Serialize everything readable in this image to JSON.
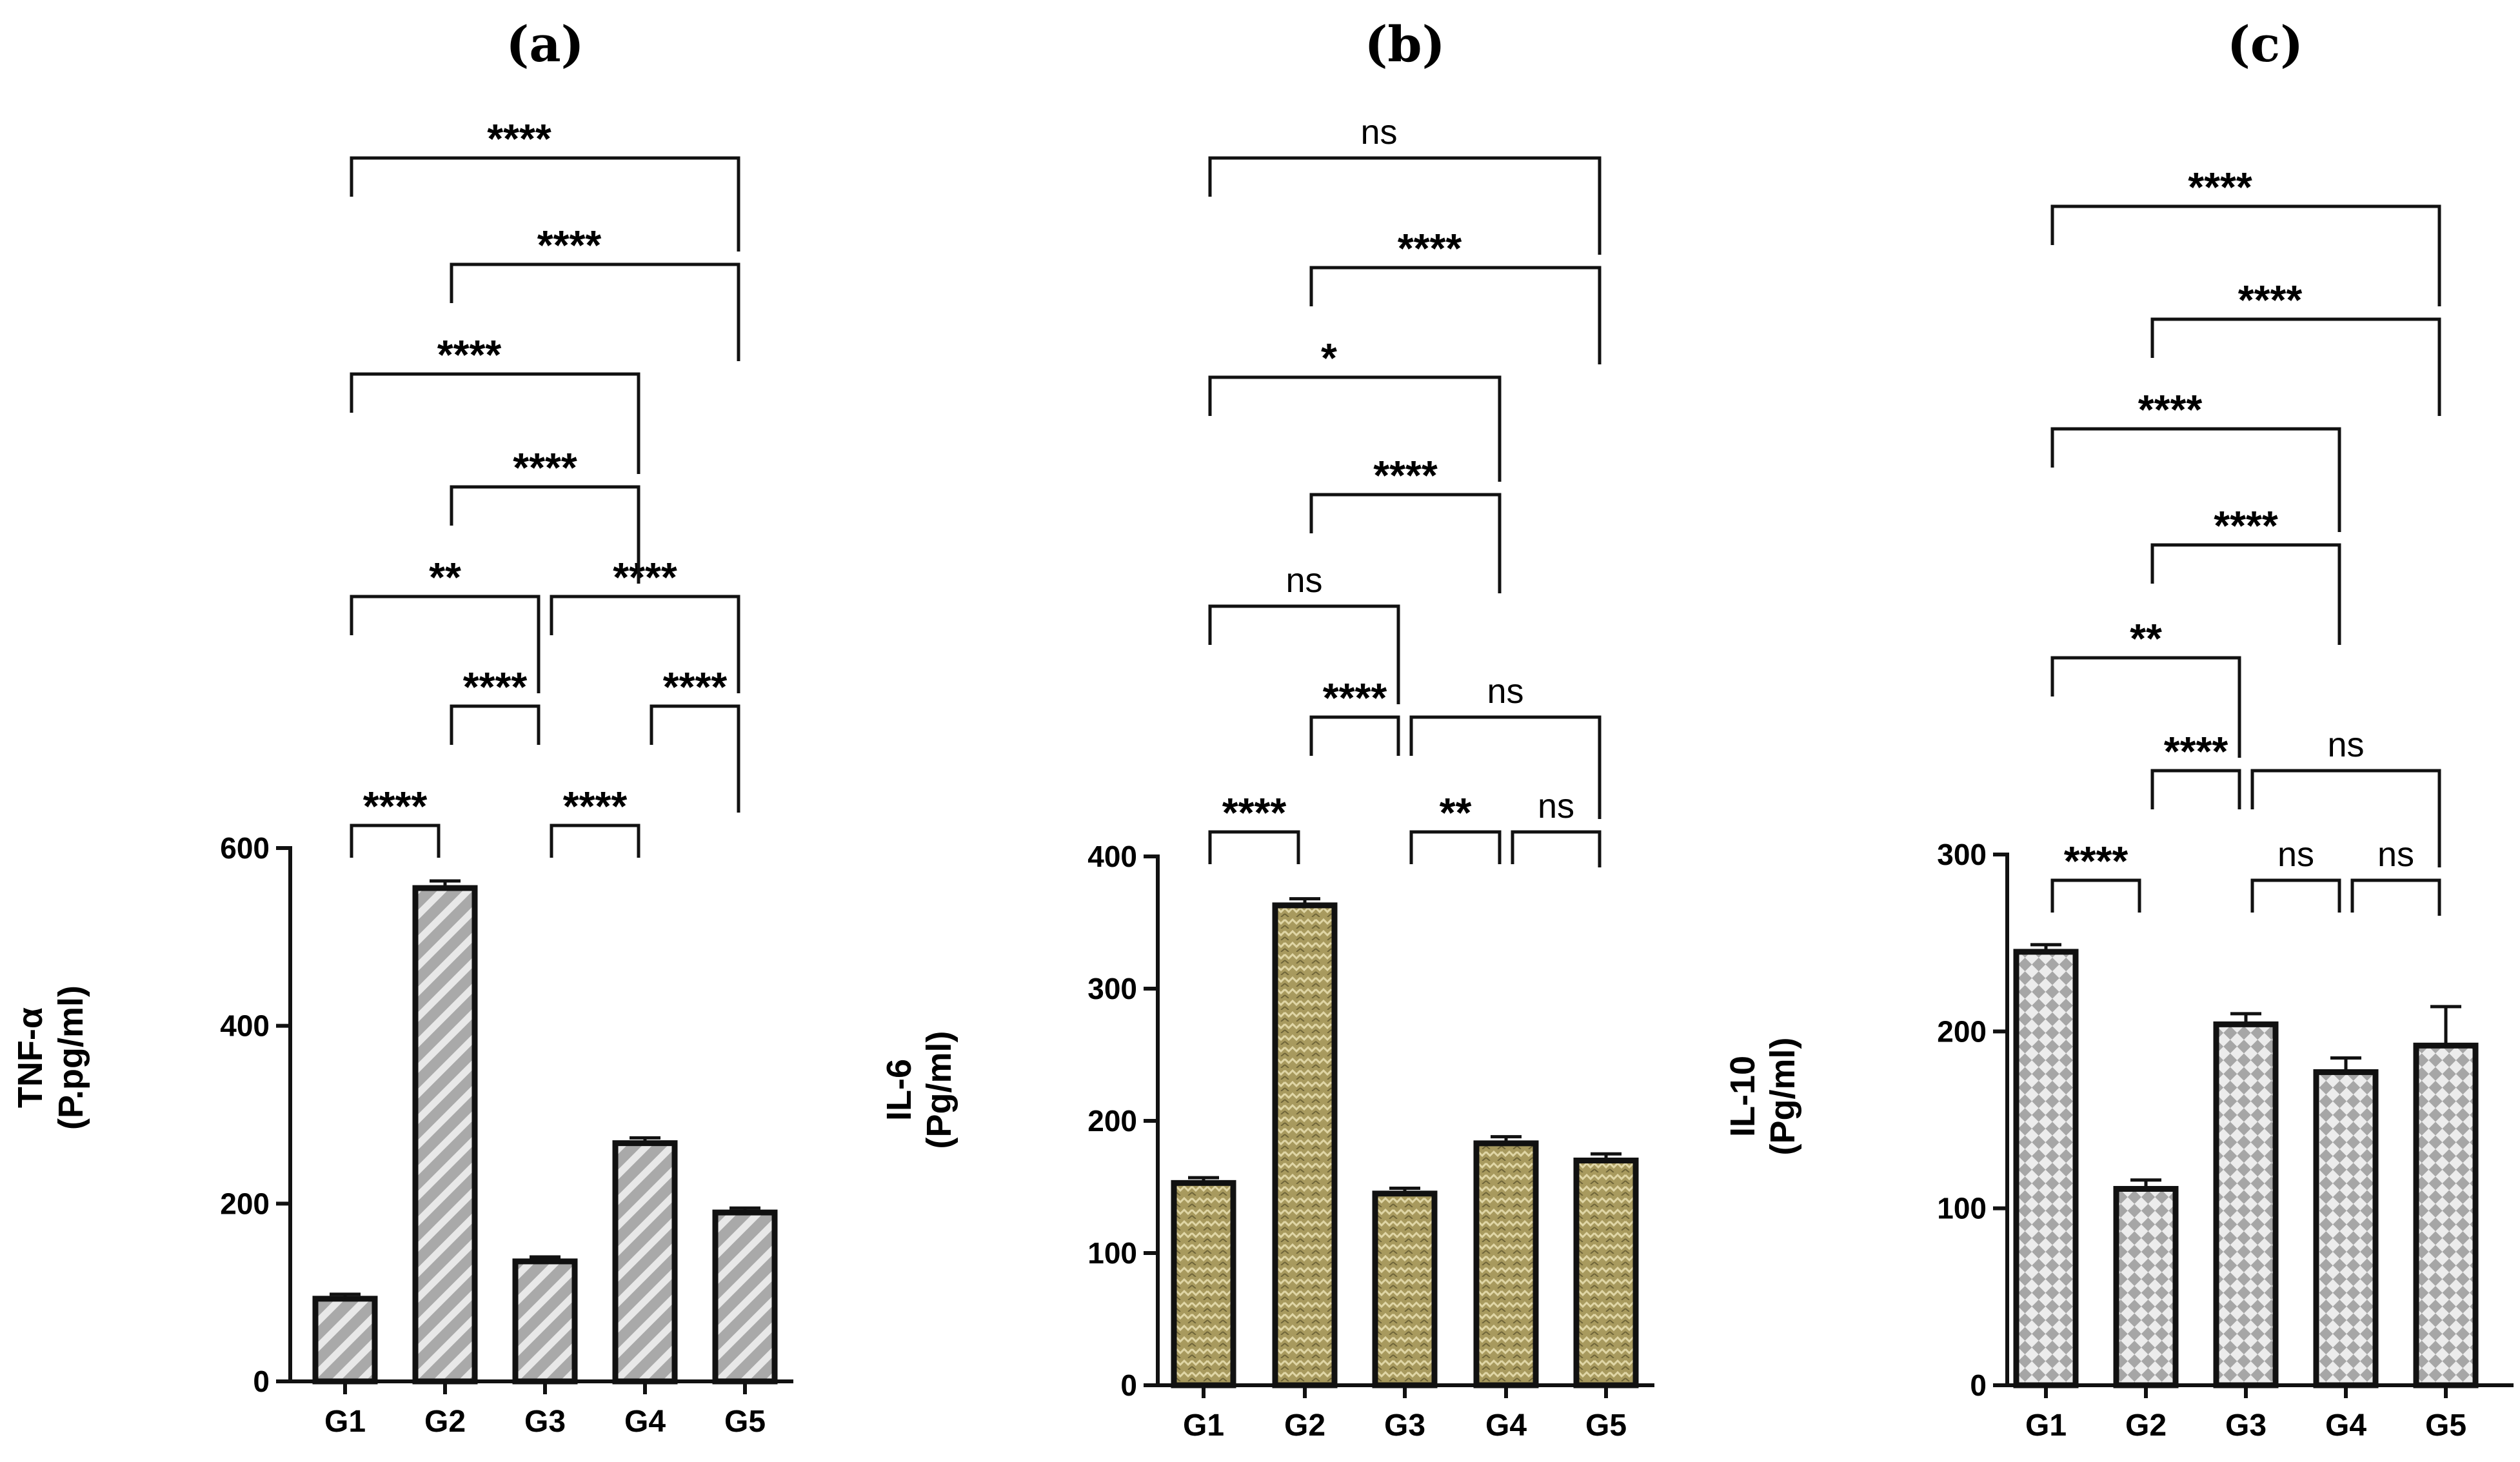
{
  "chart_data": [
    {
      "panel": "(a)",
      "type": "bar",
      "title": "(a)",
      "xlabel": "",
      "ylabel": [
        "TNF-α",
        "(P.pg/ml)"
      ],
      "categories": [
        "G1",
        "G2",
        "G3",
        "G4",
        "G5"
      ],
      "values": [
        93,
        555,
        135,
        268,
        190
      ],
      "errors": [
        5,
        8,
        5,
        6,
        5
      ],
      "ylim": [
        0,
        600
      ],
      "yticks": [
        0,
        200,
        400,
        600
      ],
      "bar_fill": "#aaaaaa",
      "pattern": "diagonal-stripes",
      "comparisons": [
        {
          "from": "G1",
          "to": "G2",
          "label": "****"
        },
        {
          "from": "G3",
          "to": "G4",
          "label": "****"
        },
        {
          "from": "G2",
          "to": "G3",
          "label": "****"
        },
        {
          "from": "G4",
          "to": "G5",
          "label": "****"
        },
        {
          "from": "G1",
          "to": "G3",
          "label": "**"
        },
        {
          "from": "G3",
          "to": "G5",
          "label": "****"
        },
        {
          "from": "G2",
          "to": "G4",
          "label": "****"
        },
        {
          "from": "G1",
          "to": "G4",
          "label": "****"
        },
        {
          "from": "G2",
          "to": "G5",
          "label": "****"
        },
        {
          "from": "G1",
          "to": "G5",
          "label": "****"
        }
      ]
    },
    {
      "panel": "(b)",
      "type": "bar",
      "title": "(b)",
      "xlabel": "",
      "ylabel": [
        "IL-6",
        "(Pg/ml)"
      ],
      "categories": [
        "G1",
        "G2",
        "G3",
        "G4",
        "G5"
      ],
      "values": [
        153,
        363,
        145,
        183,
        170
      ],
      "errors": [
        4,
        5,
        4,
        5,
        5
      ],
      "ylim": [
        0,
        400
      ],
      "yticks": [
        0,
        100,
        200,
        300,
        400
      ],
      "bar_fill": "#a89a5e",
      "pattern": "zigzag",
      "comparisons": [
        {
          "from": "G1",
          "to": "G2",
          "label": "****"
        },
        {
          "from": "G3",
          "to": "G4",
          "label": "**"
        },
        {
          "from": "G4",
          "to": "G5",
          "label": "ns"
        },
        {
          "from": "G2",
          "to": "G3",
          "label": "****"
        },
        {
          "from": "G3",
          "to": "G5",
          "label": "ns"
        },
        {
          "from": "G1",
          "to": "G3",
          "label": "ns"
        },
        {
          "from": "G2",
          "to": "G4",
          "label": "****"
        },
        {
          "from": "G1",
          "to": "G4",
          "label": "*"
        },
        {
          "from": "G2",
          "to": "G5",
          "label": "****"
        },
        {
          "from": "G1",
          "to": "G5",
          "label": "ns"
        }
      ]
    },
    {
      "panel": "(c)",
      "type": "bar",
      "title": "(c)",
      "xlabel": "",
      "ylabel": [
        "IL-10",
        "(Pg/ml)"
      ],
      "categories": [
        "G1",
        "G2",
        "G3",
        "G4",
        "G5"
      ],
      "values": [
        245,
        111,
        204,
        177,
        192
      ],
      "errors": [
        4,
        5,
        6,
        8,
        22
      ],
      "ylim": [
        0,
        300
      ],
      "yticks": [
        0,
        100,
        200,
        300
      ],
      "bar_fill": "#d2d2d2",
      "pattern": "checker",
      "comparisons": [
        {
          "from": "G1",
          "to": "G2",
          "label": "****"
        },
        {
          "from": "G3",
          "to": "G4",
          "label": "ns"
        },
        {
          "from": "G4",
          "to": "G5",
          "label": "ns"
        },
        {
          "from": "G2",
          "to": "G3",
          "label": "****"
        },
        {
          "from": "G3",
          "to": "G5",
          "label": "ns"
        },
        {
          "from": "G1",
          "to": "G3",
          "label": "**"
        },
        {
          "from": "G2",
          "to": "G4",
          "label": "****"
        },
        {
          "from": "G1",
          "to": "G4",
          "label": "****"
        },
        {
          "from": "G2",
          "to": "G5",
          "label": "****"
        },
        {
          "from": "G1",
          "to": "G5",
          "label": "****"
        }
      ]
    }
  ]
}
